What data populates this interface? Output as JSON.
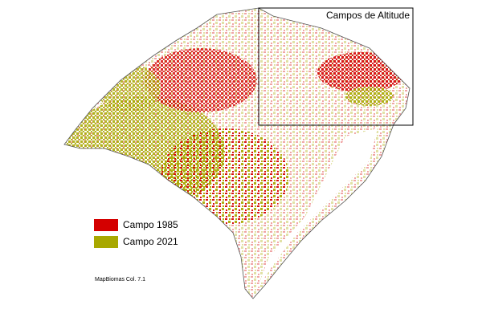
{
  "map": {
    "inset_title": "Campos de Altitude",
    "legend": [
      {
        "label": "Campo 1985",
        "color": "#d40000"
      },
      {
        "label": "Campo 2021",
        "color": "#a8a800"
      }
    ],
    "source": "MapBiomas Col. 7.1"
  }
}
